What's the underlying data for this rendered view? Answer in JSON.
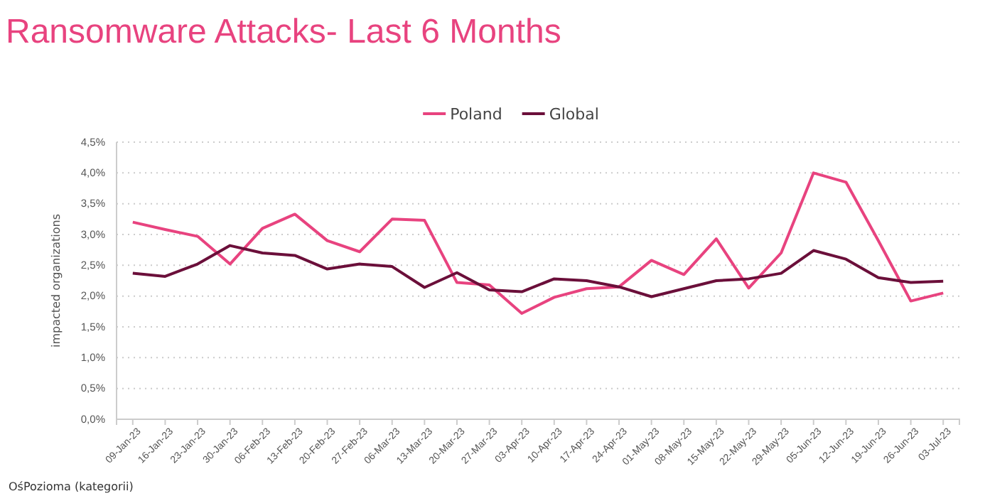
{
  "chart_data": {
    "type": "line",
    "title": "Ransomware Attacks- Last 6 Months",
    "ylabel": "impacted organizations",
    "categories": [
      "09-Jan-23",
      "16-Jan-23",
      "23-Jan-23",
      "30-Jan-23",
      "06-Feb-23",
      "13-Feb-23",
      "20-Feb-23",
      "27-Feb-23",
      "06-Mar-23",
      "13-Mar-23",
      "20-Mar-23",
      "27-Mar-23",
      "03-Apr-23",
      "10-Apr-23",
      "17-Apr-23",
      "24-Apr-23",
      "01-May-23",
      "08-May-23",
      "15-May-23",
      "22-May-23",
      "29-May-23",
      "05-Jun-23",
      "12-Jun-23",
      "19-Jun-23",
      "26-Jun-23",
      "03-Jul-23"
    ],
    "series": [
      {
        "name": "Poland",
        "color": "#e8437f",
        "values": [
          3.2,
          3.08,
          2.97,
          2.52,
          3.1,
          3.33,
          2.9,
          2.72,
          3.25,
          3.23,
          2.22,
          2.18,
          1.72,
          1.98,
          2.12,
          2.15,
          2.58,
          2.35,
          2.93,
          2.13,
          2.7,
          4.0,
          3.85,
          2.9,
          1.92,
          2.05
        ]
      },
      {
        "name": "Global",
        "color": "#6b0f3a",
        "values": [
          2.37,
          2.32,
          2.52,
          2.82,
          2.7,
          2.66,
          2.44,
          2.52,
          2.48,
          2.14,
          2.38,
          2.1,
          2.07,
          2.28,
          2.25,
          2.15,
          1.99,
          2.12,
          2.25,
          2.28,
          2.37,
          2.74,
          2.6,
          2.3,
          2.22,
          2.24
        ]
      }
    ],
    "ylim": [
      0,
      4.5
    ],
    "yticks": [
      {
        "value": 0,
        "label": "0,0%"
      },
      {
        "value": 0.5,
        "label": "0,5%"
      },
      {
        "value": 1,
        "label": "1,0%"
      },
      {
        "value": 1.5,
        "label": "1,5%"
      },
      {
        "value": 2,
        "label": "2,0%"
      },
      {
        "value": 2.5,
        "label": "2,5%"
      },
      {
        "value": 3,
        "label": "3,0%"
      },
      {
        "value": 3.5,
        "label": "3,5%"
      },
      {
        "value": 4,
        "label": "4,0%"
      },
      {
        "value": 4.5,
        "label": "4,5%"
      }
    ],
    "grid": "y",
    "legend": "top",
    "line_style": "solid",
    "marker": "none",
    "annotations": [
      "OśPozioma (kategorii)"
    ]
  }
}
